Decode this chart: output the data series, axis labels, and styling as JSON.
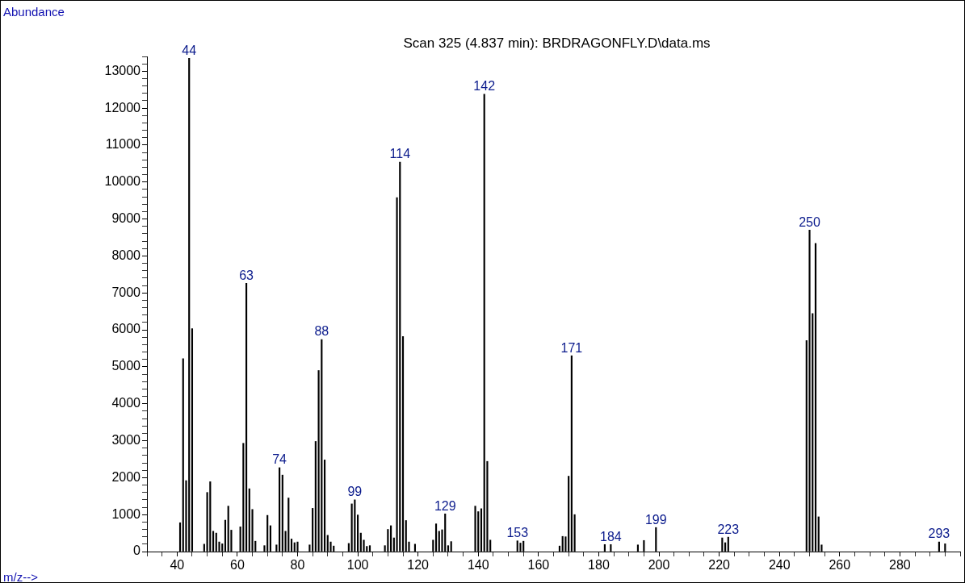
{
  "chart_data": {
    "type": "bar",
    "title": "Scan 325 (4.837 min): BRDRAGONFLY.D\\data.ms",
    "ylabel": "Abundance",
    "color": "#000000",
    "x": [
      41,
      42,
      43,
      44,
      45,
      49,
      50,
      51,
      52,
      53,
      54,
      55,
      56,
      57,
      58,
      61,
      62,
      63,
      64,
      65,
      66,
      69,
      70,
      71,
      73,
      74,
      75,
      76,
      77,
      78,
      79,
      80,
      84,
      85,
      86,
      87,
      88,
      89,
      90,
      91,
      92,
      97,
      98,
      99,
      100,
      101,
      102,
      103,
      104,
      109,
      110,
      111,
      112,
      113,
      114,
      115,
      116,
      117,
      119,
      125,
      126,
      127,
      128,
      129,
      130,
      131,
      139,
      140,
      141,
      142,
      143,
      144,
      153,
      154,
      155,
      167,
      168,
      169,
      170,
      171,
      172,
      182,
      184,
      193,
      195,
      199,
      221,
      222,
      223,
      249,
      250,
      251,
      252,
      253,
      254,
      293,
      295
    ],
    "values": [
      780,
      5220,
      1920,
      13350,
      6030,
      200,
      1600,
      1890,
      550,
      500,
      260,
      210,
      850,
      1230,
      580,
      670,
      2930,
      7260,
      1700,
      1140,
      280,
      160,
      980,
      700,
      180,
      2270,
      2070,
      550,
      1450,
      340,
      240,
      260,
      180,
      1170,
      2980,
      4900,
      5740,
      2480,
      440,
      260,
      150,
      220,
      1290,
      1400,
      990,
      500,
      310,
      140,
      160,
      160,
      600,
      700,
      370,
      9580,
      10540,
      5820,
      840,
      260,
      200,
      310,
      750,
      550,
      590,
      1020,
      160,
      270,
      1230,
      1080,
      1160,
      12380,
      2440,
      310,
      290,
      230,
      280,
      150,
      410,
      400,
      2040,
      5300,
      1000,
      190,
      190,
      180,
      300,
      650,
      370,
      240,
      390,
      5710,
      8700,
      6440,
      8340,
      940,
      180,
      260,
      210
    ],
    "annotations": [
      "m/z-->",
      {
        "text": "44",
        "x": 44,
        "y": 13350
      },
      {
        "text": "63",
        "x": 63,
        "y": 7260
      },
      {
        "text": "74",
        "x": 74,
        "y": 2270
      },
      {
        "text": "88",
        "x": 88,
        "y": 5740
      },
      {
        "text": "99",
        "x": 99,
        "y": 1400
      },
      {
        "text": "114",
        "x": 114,
        "y": 10540
      },
      {
        "text": "129",
        "x": 129,
        "y": 1020
      },
      {
        "text": "142",
        "x": 142,
        "y": 12380
      },
      {
        "text": "153",
        "x": 153,
        "y": 290
      },
      {
        "text": "171",
        "x": 171,
        "y": 5300
      },
      {
        "text": "184",
        "x": 184,
        "y": 190
      },
      {
        "text": "199",
        "x": 199,
        "y": 650
      },
      {
        "text": "223",
        "x": 223,
        "y": 390
      },
      {
        "text": "250",
        "x": 250,
        "y": 8700
      },
      {
        "text": "293",
        "x": 293,
        "y": 260
      }
    ],
    "xlim": [
      30,
      300
    ],
    "xticks": [
      {
        "value": 30,
        "label": null
      },
      {
        "value": 35,
        "label": null
      },
      40,
      {
        "value": 45,
        "label": null
      },
      {
        "value": 50,
        "label": null
      },
      {
        "value": 55,
        "label": null
      },
      60,
      {
        "value": 65,
        "label": null
      },
      {
        "value": 70,
        "label": null
      },
      {
        "value": 75,
        "label": null
      },
      80,
      {
        "value": 85,
        "label": null
      },
      {
        "value": 90,
        "label": null
      },
      {
        "value": 95,
        "label": null
      },
      100,
      {
        "value": 105,
        "label": null
      },
      {
        "value": 110,
        "label": null
      },
      {
        "value": 115,
        "label": null
      },
      120,
      {
        "value": 125,
        "label": null
      },
      {
        "value": 130,
        "label": null
      },
      {
        "value": 135,
        "label": null
      },
      140,
      {
        "value": 145,
        "label": null
      },
      {
        "value": 150,
        "label": null
      },
      {
        "value": 155,
        "label": null
      },
      160,
      {
        "value": 165,
        "label": null
      },
      {
        "value": 170,
        "label": null
      },
      {
        "value": 175,
        "label": null
      },
      180,
      {
        "value": 185,
        "label": null
      },
      {
        "value": 190,
        "label": null
      },
      {
        "value": 195,
        "label": null
      },
      200,
      {
        "value": 205,
        "label": null
      },
      {
        "value": 210,
        "label": null
      },
      {
        "value": 215,
        "label": null
      },
      220,
      {
        "value": 225,
        "label": null
      },
      {
        "value": 230,
        "label": null
      },
      {
        "value": 235,
        "label": null
      },
      240,
      {
        "value": 245,
        "label": null
      },
      {
        "value": 250,
        "label": null
      },
      {
        "value": 255,
        "label": null
      },
      260,
      {
        "value": 265,
        "label": null
      },
      {
        "value": 270,
        "label": null
      },
      {
        "value": 275,
        "label": null
      },
      280,
      {
        "value": 285,
        "label": null
      },
      {
        "value": 290,
        "label": null
      },
      {
        "value": 295,
        "label": null
      },
      {
        "value": 300,
        "label": null
      }
    ],
    "ylim": [
      0,
      13400
    ],
    "yticks": [
      0,
      {
        "value": 200,
        "label": null
      },
      {
        "value": 400,
        "label": null
      },
      {
        "value": 600,
        "label": null
      },
      {
        "value": 800,
        "label": null
      },
      1000,
      {
        "value": 1200,
        "label": null
      },
      {
        "value": 1400,
        "label": null
      },
      {
        "value": 1600,
        "label": null
      },
      {
        "value": 1800,
        "label": null
      },
      2000,
      {
        "value": 2200,
        "label": null
      },
      {
        "value": 2400,
        "label": null
      },
      {
        "value": 2600,
        "label": null
      },
      {
        "value": 2800,
        "label": null
      },
      3000,
      {
        "value": 3200,
        "label": null
      },
      {
        "value": 3400,
        "label": null
      },
      {
        "value": 3600,
        "label": null
      },
      {
        "value": 3800,
        "label": null
      },
      4000,
      {
        "value": 4200,
        "label": null
      },
      {
        "value": 4400,
        "label": null
      },
      {
        "value": 4600,
        "label": null
      },
      {
        "value": 4800,
        "label": null
      },
      5000,
      {
        "value": 5200,
        "label": null
      },
      {
        "value": 5400,
        "label": null
      },
      {
        "value": 5600,
        "label": null
      },
      {
        "value": 5800,
        "label": null
      },
      6000,
      {
        "value": 6200,
        "label": null
      },
      {
        "value": 6400,
        "label": null
      },
      {
        "value": 6600,
        "label": null
      },
      {
        "value": 6800,
        "label": null
      },
      7000,
      {
        "value": 7200,
        "label": null
      },
      {
        "value": 7400,
        "label": null
      },
      {
        "value": 7600,
        "label": null
      },
      {
        "value": 7800,
        "label": null
      },
      8000,
      {
        "value": 8200,
        "label": null
      },
      {
        "value": 8400,
        "label": null
      },
      {
        "value": 8600,
        "label": null
      },
      {
        "value": 8800,
        "label": null
      },
      9000,
      {
        "value": 9200,
        "label": null
      },
      {
        "value": 9400,
        "label": null
      },
      {
        "value": 9600,
        "label": null
      },
      {
        "value": 9800,
        "label": null
      },
      10000,
      {
        "value": 10200,
        "label": null
      },
      {
        "value": 10400,
        "label": null
      },
      {
        "value": 10600,
        "label": null
      },
      {
        "value": 10800,
        "label": null
      },
      11000,
      {
        "value": 11200,
        "label": null
      },
      {
        "value": 11400,
        "label": null
      },
      {
        "value": 11600,
        "label": null
      },
      {
        "value": 11800,
        "label": null
      },
      12000,
      {
        "value": 12200,
        "label": null
      },
      {
        "value": 12400,
        "label": null
      },
      {
        "value": 12600,
        "label": null
      },
      {
        "value": 12800,
        "label": null
      },
      13000,
      {
        "value": 13200,
        "label": null
      },
      {
        "value": 13400,
        "label": null
      }
    ]
  }
}
